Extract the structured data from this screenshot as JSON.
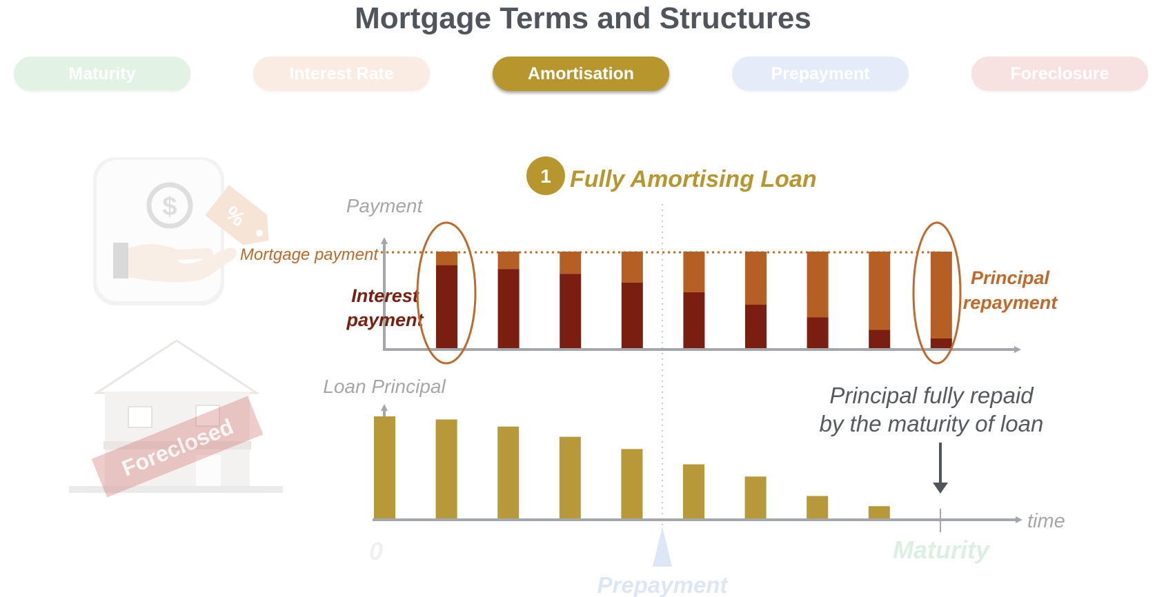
{
  "page": {
    "title": "Mortgage Terms and Structures"
  },
  "tabs": [
    {
      "label": "Maturity",
      "color": "#a8d8b0",
      "active": false
    },
    {
      "label": "Interest Rate",
      "color": "#f2c6a6",
      "active": false
    },
    {
      "label": "Amortisation",
      "color": "#b8962e",
      "active": true
    },
    {
      "label": "Prepayment",
      "color": "#a9c6ea",
      "active": false
    },
    {
      "label": "Foreclosure",
      "color": "#e8a3a3",
      "active": false
    }
  ],
  "section": {
    "number": "1",
    "title": "Fully Amortising Loan"
  },
  "payment_chart": {
    "axis_label": "Payment",
    "mortgage_payment_label": "Mortgage payment",
    "interest_label": [
      "Interest",
      "payment"
    ],
    "principal_label": [
      "Principal",
      "repayment"
    ],
    "payment_total": 100,
    "interest_values": [
      86,
      82,
      77,
      68,
      58,
      45,
      32,
      19,
      10
    ],
    "principal_values": [
      14,
      18,
      23,
      32,
      42,
      55,
      68,
      81,
      90
    ],
    "colors": {
      "interest": "#7a1e10",
      "principal": "#b55f25"
    }
  },
  "principal_chart": {
    "axis_label": "Loan Principal",
    "values": [
      100,
      97,
      90,
      80,
      68,
      53,
      41,
      22,
      12
    ],
    "color": "#b8993a",
    "x_axis_label": "time"
  },
  "annotations": {
    "principal_repaid": [
      "Principal fully repaid",
      "by the maturity of loan"
    ],
    "zero_label": "0",
    "maturity_label": "Maturity",
    "prepayment_label": "Prepayment",
    "foreclosed_stamp": "Foreclosed"
  },
  "icons": [
    "hand-money-card-icon",
    "dollar-coin-icon",
    "percent-tag-icon",
    "house-icon",
    "arrow-down-icon"
  ]
}
